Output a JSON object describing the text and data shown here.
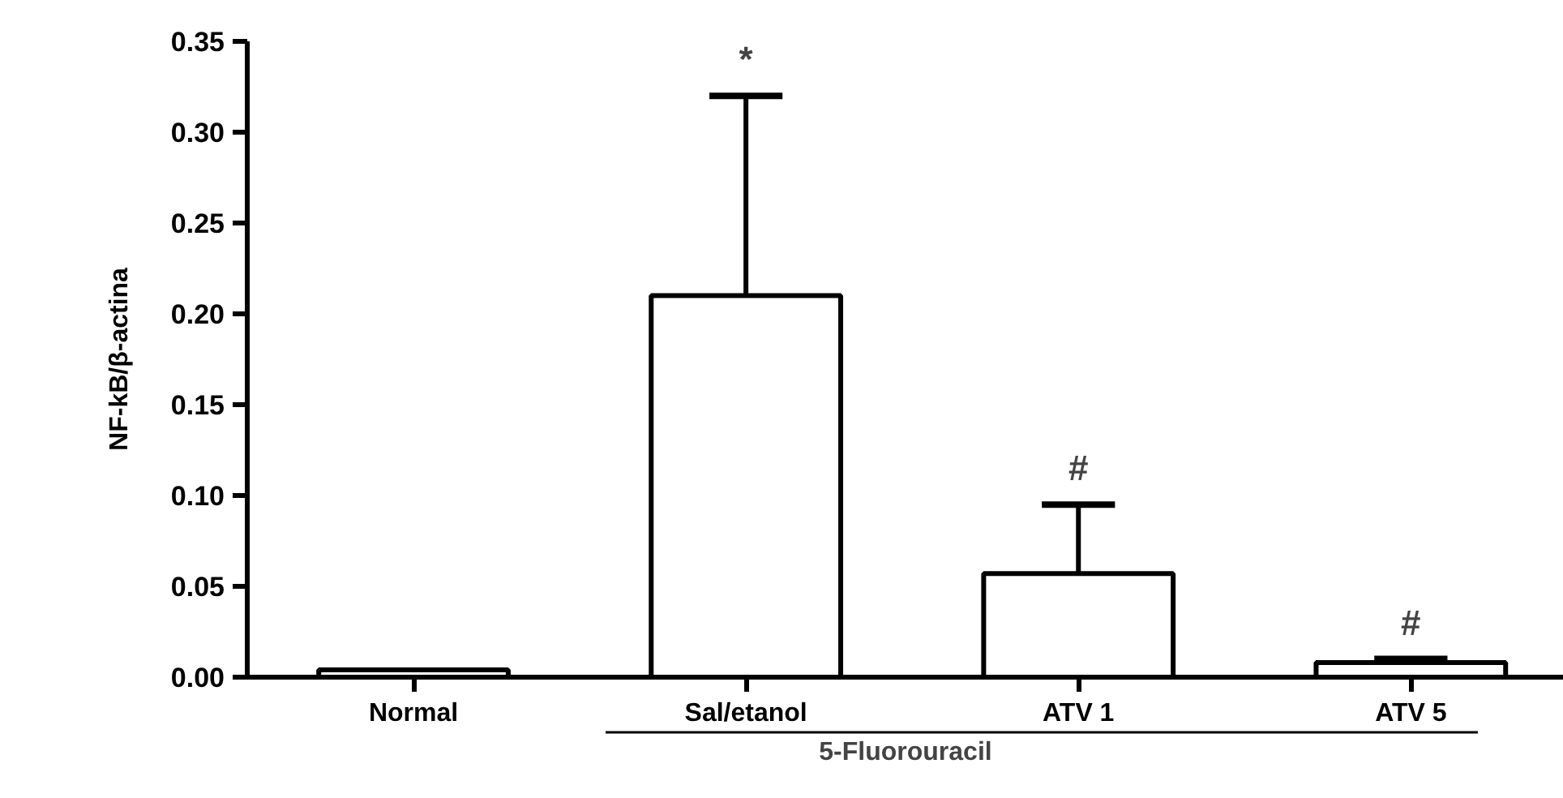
{
  "chart_data": {
    "type": "bar",
    "ylabel": "NF-kB/β-actina",
    "categories": [
      "Normal",
      "Sal/etanol",
      "ATV 1",
      "ATV 5"
    ],
    "values": [
      0.004,
      0.21,
      0.057,
      0.008
    ],
    "errors": [
      null,
      [
        0.21,
        0.32
      ],
      [
        0.057,
        0.095
      ],
      [
        0.008,
        0.01
      ]
    ],
    "color": "#ffffff",
    "ylim": [
      0,
      0.35
    ],
    "yticks": [
      {
        "value": 0,
        "label": "0.00"
      },
      {
        "value": 0.05,
        "label": "0.05"
      },
      {
        "value": 0.1,
        "label": "0.10"
      },
      {
        "value": 0.15,
        "label": "0.15"
      },
      {
        "value": 0.2,
        "label": "0.20"
      },
      {
        "value": 0.25,
        "label": "0.25"
      },
      {
        "value": 0.3,
        "label": "0.30"
      },
      {
        "value": 0.35,
        "label": "0.35"
      }
    ],
    "grid": false,
    "annotations": [
      {
        "text": "*",
        "x": "Sal/etanol",
        "y": 0.32
      },
      {
        "text": "#",
        "x": "ATV 1",
        "y": 0.095
      },
      {
        "text": "#",
        "x": "ATV 5",
        "y": 0.01
      },
      "5-Fluorouracil"
    ]
  }
}
